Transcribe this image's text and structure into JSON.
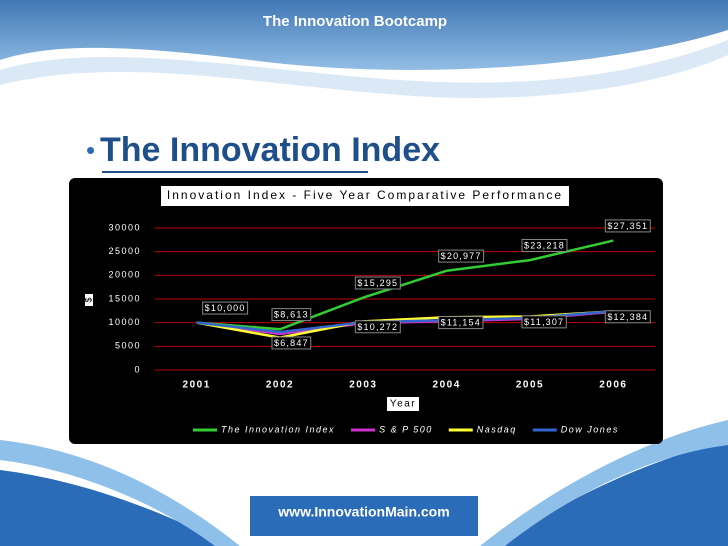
{
  "header": {
    "title": "The Innovation Bootcamp"
  },
  "slide": {
    "title": "The Innovation Index"
  },
  "footer": {
    "url": "www.InnovationMain.com"
  },
  "chart_data": {
    "type": "line",
    "title": "Innovation Index - Five Year Comparative Performance",
    "x_label": "Year",
    "y_label": "$",
    "categories": [
      "2001",
      "2002",
      "2003",
      "2004",
      "2005",
      "2006"
    ],
    "series": [
      {
        "name": "The Innovation Index",
        "color": "#33cc33",
        "values": [
          10000,
          8613,
          15295,
          20977,
          23218,
          27351
        ],
        "value_labels": [
          "$10,000",
          "$8,613",
          "$15,295",
          "$20,977",
          "$23,218",
          "$27,351"
        ]
      },
      {
        "name": "S & P 500",
        "color": "#cc33cc",
        "values": [
          10000,
          7600,
          9900,
          10300,
          10800,
          12300
        ]
      },
      {
        "name": "Nasdaq",
        "color": "#ffff33",
        "values": [
          10000,
          6847,
          10272,
          11154,
          11307,
          12384
        ],
        "value_labels": [
          null,
          "$6,847",
          "$10,272",
          "$11,154",
          "$11,307",
          "$12,384"
        ]
      },
      {
        "name": "Dow Jones",
        "color": "#3366cc",
        "values": [
          10000,
          8000,
          10100,
          10500,
          11000,
          12400
        ]
      }
    ],
    "ylim": [
      0,
      30000
    ],
    "yticks": [
      0,
      5000,
      10000,
      15000,
      20000,
      25000,
      30000
    ],
    "grid": true,
    "legend": "bottom"
  }
}
